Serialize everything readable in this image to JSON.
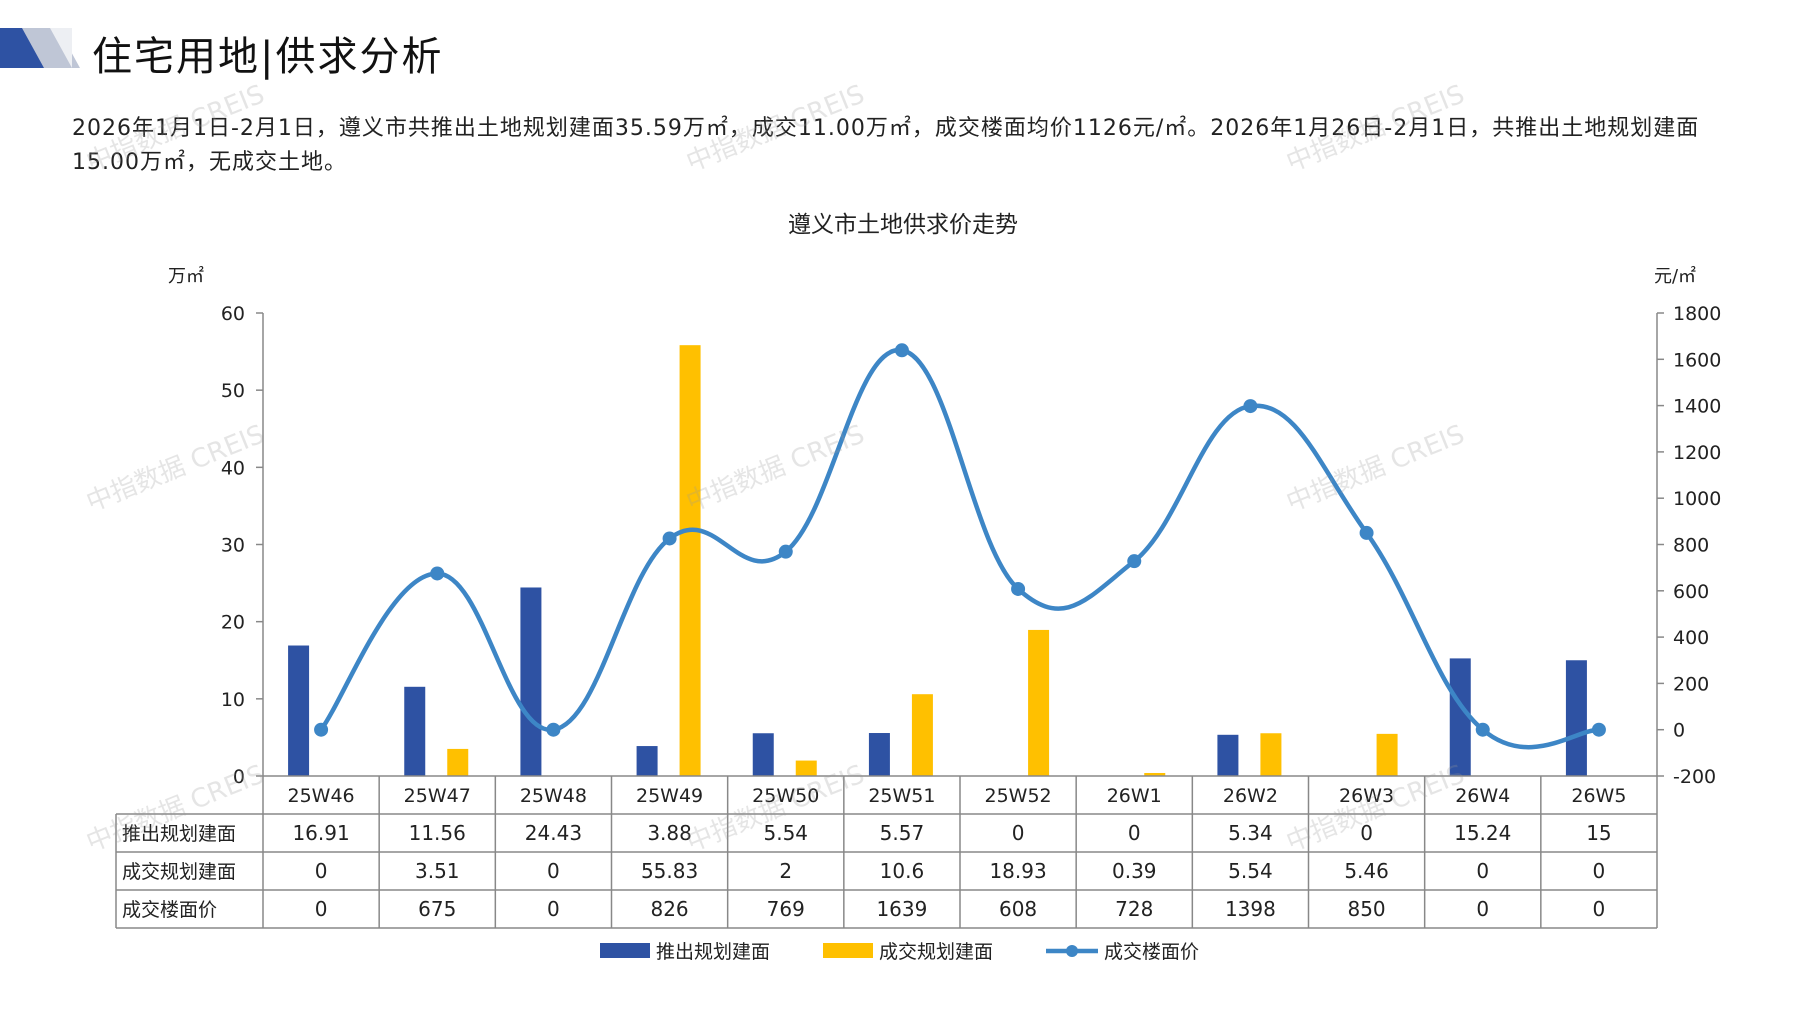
{
  "header": {
    "title": "住宅用地|供求分析"
  },
  "summary": "2026年1月1日-2月1日，遵义市共推出土地规划建面35.59万㎡，成交11.00万㎡，成交楼面均价1126元/㎡。2026年1月26日-2月1日，共推出土地规划建面15.00万㎡，无成交土地。",
  "watermark": "中指数据 CREIS",
  "colors": {
    "supply": "#2E52A3",
    "deal": "#FFC000",
    "price": "#3D86C6",
    "grid": "#888888"
  },
  "chart_data": {
    "type": "bar",
    "title": "遵义市土地供求价走势",
    "ylabel_left": "万㎡",
    "ylabel_right": "元/㎡",
    "ylim_left": [
      0,
      60
    ],
    "yticks_left": [
      0,
      10,
      20,
      30,
      40,
      50,
      60
    ],
    "ylim_right": [
      -200,
      1800
    ],
    "yticks_right": [
      -200,
      0,
      200,
      400,
      600,
      800,
      1000,
      1200,
      1400,
      1600,
      1800
    ],
    "categories": [
      "25W46",
      "25W47",
      "25W48",
      "25W49",
      "25W50",
      "25W51",
      "25W52",
      "26W1",
      "26W2",
      "26W3",
      "26W4",
      "26W5"
    ],
    "series": [
      {
        "name": "推出规划建面",
        "type": "bar",
        "axis": "left",
        "values": [
          16.91,
          11.56,
          24.43,
          3.88,
          5.54,
          5.57,
          0,
          0,
          5.34,
          0,
          15.24,
          15
        ],
        "labels": [
          "16.91",
          "11.56",
          "24.43",
          "3.88",
          "5.54",
          "5.57",
          "0",
          "0",
          "5.34",
          "0",
          "15.24",
          "15"
        ]
      },
      {
        "name": "成交规划建面",
        "type": "bar",
        "axis": "left",
        "values": [
          0,
          3.51,
          0,
          55.83,
          2,
          10.6,
          18.93,
          0.39,
          5.54,
          5.46,
          0,
          0
        ],
        "labels": [
          "0",
          "3.51",
          "0",
          "55.83",
          "2",
          "10.6",
          "18.93",
          "0.39",
          "5.54",
          "5.46",
          "0",
          "0"
        ]
      },
      {
        "name": "成交楼面价",
        "type": "line",
        "axis": "right",
        "values": [
          0,
          675,
          0,
          826,
          769,
          1639,
          608,
          728,
          1398,
          850,
          0,
          0
        ],
        "labels": [
          "0",
          "675",
          "0",
          "826",
          "769",
          "1639",
          "608",
          "728",
          "1398",
          "850",
          "0",
          "0"
        ]
      }
    ],
    "legend_position": "bottom",
    "grid": false
  }
}
